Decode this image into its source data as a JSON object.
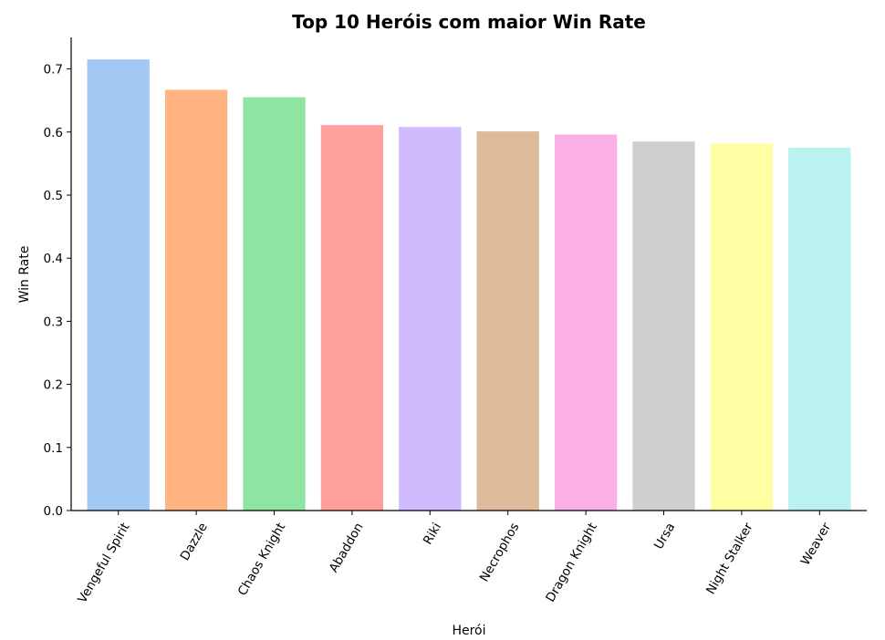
{
  "chart_data": {
    "type": "bar",
    "title": "Top 10 Heróis com maior Win Rate",
    "xlabel": "Herói",
    "ylabel": "Win Rate",
    "categories": [
      "Vengeful Spirit",
      "Dazzle",
      "Chaos Knight",
      "Abaddon",
      "Riki",
      "Necrophos",
      "Dragon Knight",
      "Ursa",
      "Night Stalker",
      "Weaver"
    ],
    "values": [
      0.715,
      0.667,
      0.655,
      0.611,
      0.608,
      0.601,
      0.596,
      0.585,
      0.582,
      0.575
    ],
    "colors": [
      "#a1c9f4",
      "#ffb482",
      "#8de5a1",
      "#ff9f9b",
      "#d0bbff",
      "#debb9b",
      "#fab0e4",
      "#cfcfcf",
      "#fffea3",
      "#b9f2f0"
    ],
    "yticks": [
      "0.0",
      "0.1",
      "0.2",
      "0.3",
      "0.4",
      "0.5",
      "0.6",
      "0.7"
    ],
    "ylim": [
      0,
      0.75
    ],
    "grid": false,
    "legend": false
  }
}
